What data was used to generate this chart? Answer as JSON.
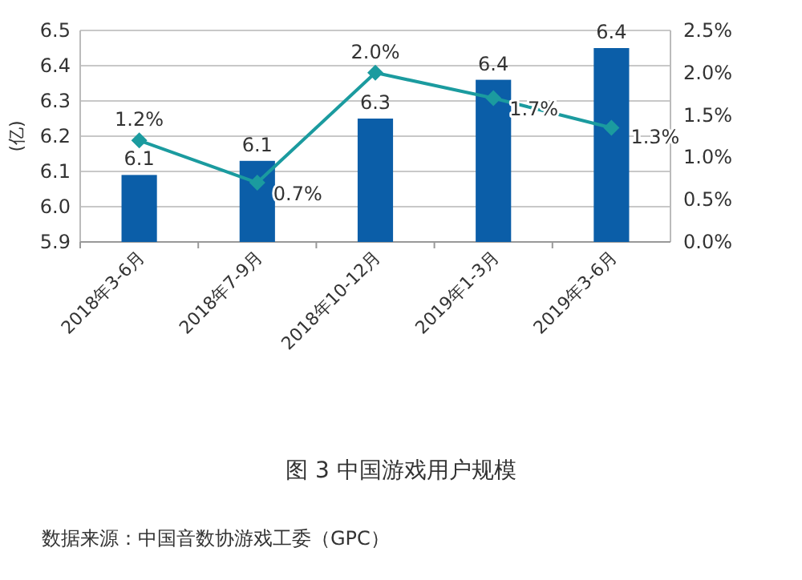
{
  "chart_data": {
    "type": "bar",
    "title": "图 3 中国游戏用户规模",
    "ylabel": "(亿)",
    "categories": [
      "2018年3-6月",
      "2018年7-9月",
      "2018年10-12月",
      "2019年1-3月",
      "2019年3-6月"
    ],
    "series": [
      {
        "color": "#0b5ea8",
        "values": [
          6.09,
          6.13,
          6.25,
          6.36,
          6.45
        ],
        "value_labels": [
          "6.1",
          "6.1",
          "6.3",
          "6.4",
          "6.4"
        ]
      },
      {
        "type": "line",
        "axis": "y2",
        "color": "#1b9b9f",
        "marker": "diamond",
        "values": [
          1.2,
          0.7,
          2.0,
          1.7,
          1.35
        ],
        "value_labels": [
          "1.2%",
          "0.7%",
          "2.0%",
          "1.7%",
          "1.3%"
        ]
      }
    ],
    "ylim": [
      5.9,
      6.5
    ],
    "yticks": [
      5.9,
      {
        "value": 6.0,
        "label": "6.0"
      },
      6.1,
      6.2,
      6.3,
      6.4,
      6.5
    ],
    "y2lim": [
      0,
      2.5
    ],
    "y2ticks": [
      {
        "value": 0,
        "label": "0.0%"
      },
      {
        "value": 0.5,
        "label": "0.5%"
      },
      {
        "value": 1,
        "label": "1.0%"
      },
      {
        "value": 1.5,
        "label": "1.5%"
      },
      {
        "value": 2,
        "label": "2.0%"
      },
      {
        "value": 2.5,
        "label": "2.5%"
      }
    ],
    "grid": "y",
    "annotations": [
      "数据来源：中国音数协游戏工委（GPC）"
    ]
  }
}
